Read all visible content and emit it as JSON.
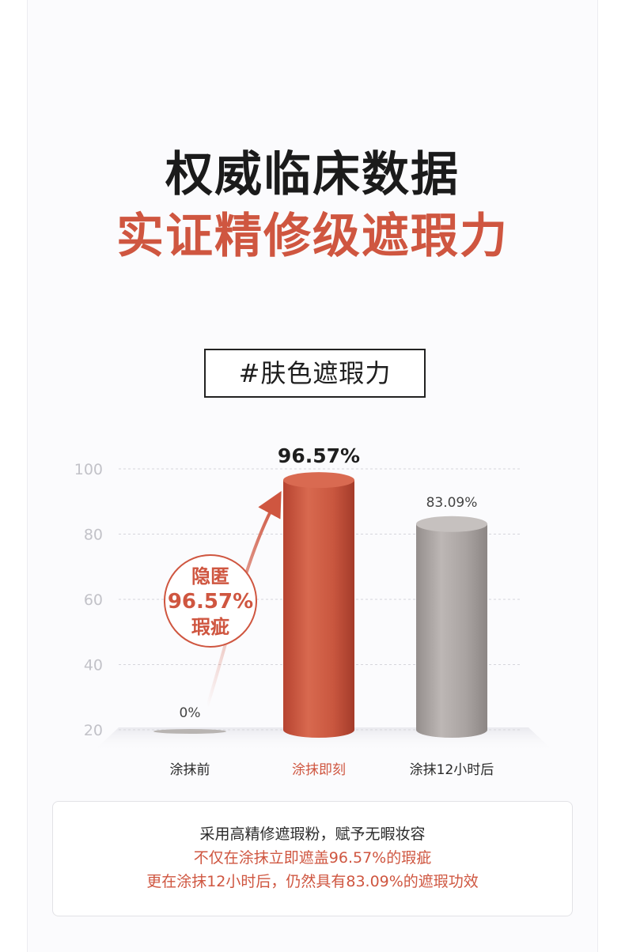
{
  "headline": {
    "line1": "权威临床数据",
    "line2": "实证精修级遮瑕力"
  },
  "tag": "#肤色遮瑕力",
  "chart_data": {
    "type": "bar",
    "categories": [
      "涂抹前",
      "涂抹即刻",
      "涂抹12小时后"
    ],
    "values": [
      0,
      96.57,
      83.09
    ],
    "value_labels": [
      "0%",
      "96.57%",
      "83.09%"
    ],
    "y_ticks": [
      100,
      80,
      60,
      40,
      20
    ],
    "ylim": [
      20,
      100
    ],
    "grid": true,
    "highlight_index": 1,
    "annotation": {
      "line1": "隐匿",
      "line2": "96.57%",
      "line3": "瑕疵"
    },
    "colors": {
      "highlight": "#c9573f",
      "neutral": "#a9a3a1",
      "annotation": "#cf5640"
    }
  },
  "summary": {
    "line1": "采用高精修遮瑕粉，赋予无暇妆容",
    "line2": "不仅在涂抹立即遮盖96.57%的瑕疵",
    "line3": "更在涂抹12小时后，仍然具有83.09%的遮瑕功效"
  }
}
